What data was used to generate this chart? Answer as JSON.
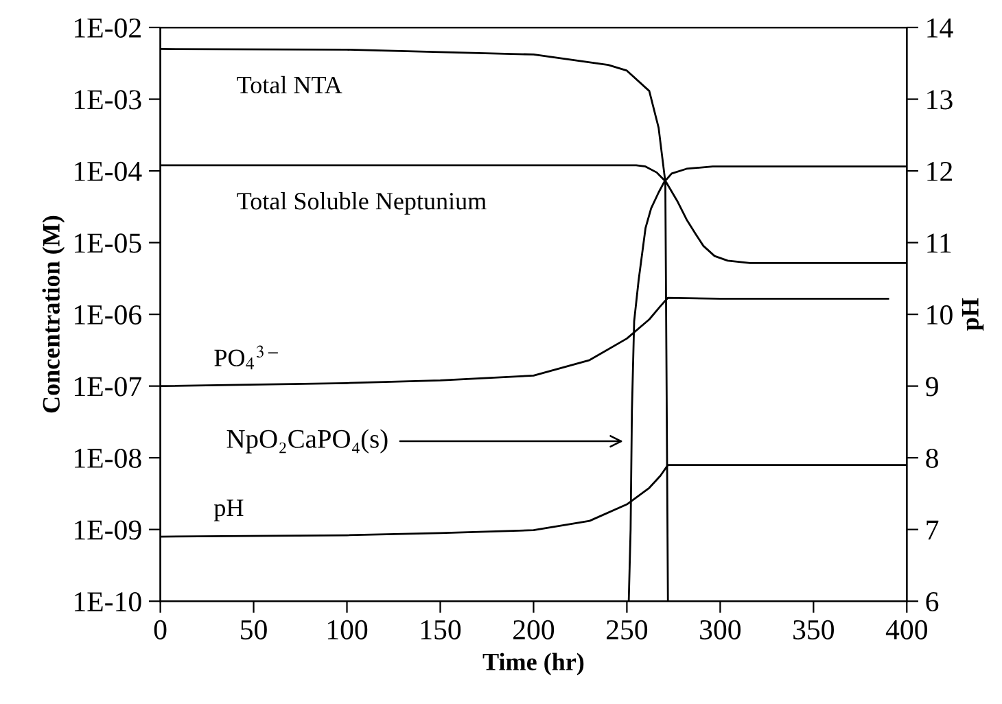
{
  "chart_data": {
    "type": "line",
    "xlabel": "Time (hr)",
    "ylabel": "Concentration (M)",
    "y2label": "pH",
    "log": "y",
    "grid": false,
    "legend": false,
    "marker": "none",
    "line_style": "solid",
    "xlim": [
      0,
      400
    ],
    "xticks": [
      0,
      50,
      100,
      150,
      200,
      250,
      300,
      350,
      400
    ],
    "ylim": [
      1e-10,
      0.01
    ],
    "yticks": [
      {
        "value": 1e-10,
        "label": "1E-10"
      },
      {
        "value": 1e-09,
        "label": "1E-09"
      },
      {
        "value": 1e-08,
        "label": "1E-08"
      },
      {
        "value": 1e-07,
        "label": "1E-07"
      },
      {
        "value": 1e-06,
        "label": "1E-06"
      },
      {
        "value": 1e-05,
        "label": "1E-05"
      },
      {
        "value": 0.0001,
        "label": "1E-04"
      },
      {
        "value": 0.001,
        "label": "1E-03"
      },
      {
        "value": 0.01,
        "label": "1E-02"
      }
    ],
    "y2lim": [
      6,
      14
    ],
    "y2ticks": [
      6,
      7,
      8,
      9,
      10,
      11,
      12,
      13,
      14
    ],
    "series": [
      {
        "name": "Total NTA",
        "color": "#000000",
        "x": [
          0,
          100,
          200,
          240,
          250,
          262,
          267,
          270.6,
          272
        ],
        "values": [
          0.005,
          0.0049,
          0.0042,
          0.003,
          0.0025,
          0.0013,
          0.0004,
          7e-05,
          1e-10
        ]
      },
      {
        "name": "Total Soluble Neptunium",
        "color": "#000000",
        "x": [
          0,
          100,
          200,
          255,
          260,
          266,
          271,
          277,
          282,
          287,
          291,
          297,
          304,
          316,
          350,
          400
        ],
        "values": [
          0.00012,
          0.00012,
          0.00012,
          0.00012,
          0.000115,
          9.5e-05,
          7e-05,
          3.8e-05,
          2.1e-05,
          1.3e-05,
          9e-06,
          6.5e-06,
          5.6e-06,
          5.2e-06,
          5.2e-06,
          5.2e-06
        ]
      },
      {
        "name": "PO$_{4}$$^{3−}$",
        "color": "#000000",
        "x": [
          0,
          100,
          150,
          200,
          230,
          250,
          262,
          268,
          272,
          300,
          390
        ],
        "values": [
          1e-07,
          1.1e-07,
          1.2e-07,
          1.4e-07,
          2.3e-07,
          4.6e-07,
          8.5e-07,
          1.3e-06,
          1.7e-06,
          1.65e-06,
          1.65e-06
        ]
      },
      {
        "color": "#000000",
        "x": [
          251,
          252,
          252.7,
          253.9,
          256.3,
          260,
          263,
          267,
          270,
          274,
          282,
          296,
          350,
          400
        ],
        "values": [
          1e-10,
          1e-09,
          4.5e-08,
          8e-07,
          3e-06,
          1.6e-05,
          3e-05,
          5e-05,
          7e-05,
          9.2e-05,
          0.000107,
          0.000115,
          0.000115,
          0.000115
        ]
      },
      {
        "name": "pH",
        "color": "#000000",
        "axis": "y2",
        "x": [
          0,
          100,
          150,
          200,
          230,
          250,
          262,
          268,
          272,
          300,
          400
        ],
        "values": [
          6.9,
          6.92,
          6.95,
          6.99,
          7.12,
          7.35,
          7.58,
          7.75,
          7.9,
          7.9,
          7.9
        ]
      }
    ],
    "annotations": [
      {
        "text": "NpO₂CaPO₄(s)",
        "x": 250,
        "y": 1.7e-08
      }
    ]
  }
}
